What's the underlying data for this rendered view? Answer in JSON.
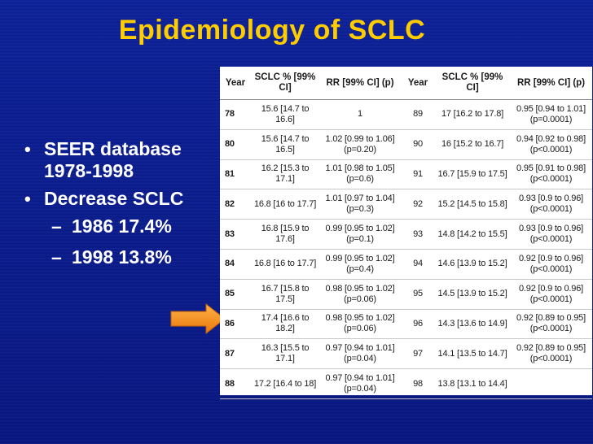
{
  "slide": {
    "title": "Epidemiology of SCLC",
    "bullets": [
      {
        "text": "SEER database 1978-1998"
      },
      {
        "text": "Decrease SCLC"
      }
    ],
    "sub_bullets": [
      {
        "text": "1986 17.4%"
      },
      {
        "text": "1998 13.8%"
      }
    ],
    "arrow_icon": "right-arrow-icon",
    "colors": {
      "background": "#0b1a8c",
      "title": "#ffcc00",
      "text": "#ffffff",
      "arrow": "#f7941d"
    }
  },
  "table": {
    "headers": [
      "Year",
      "SCLC % [99% CI]",
      "RR [99% CI] (p)",
      "Year",
      "SCLC % [99% CI]",
      "RR [99% CI] (p)"
    ],
    "rows": [
      [
        "78",
        "15.6 [14.7 to 16.6]",
        "1",
        "89",
        "17 [16.2 to 17.8]",
        "0.95 [0.94 to 1.01] (p=0.0001)"
      ],
      [
        "80",
        "15.6 [14.7 to 16.5]",
        "1.02 [0.99 to 1.06] (p=0.20)",
        "90",
        "16 [15.2 to 16.7]",
        "0.94 [0.92 to 0.98] (p<0.0001)"
      ],
      [
        "81",
        "16.2 [15.3 to 17.1]",
        "1.01 [0.98 to 1.05] (p=0.6)",
        "91",
        "16.7 [15.9 to 17.5]",
        "0.95 [0.91 to 0.98] (p<0.0001)"
      ],
      [
        "82",
        "16.8 [16 to 17.7]",
        "1.01 [0.97 to 1.04] (p=0.3)",
        "92",
        "15.2 [14.5 to 15.8]",
        "0.93 [0.9 to 0.96] (p<0.0001)"
      ],
      [
        "83",
        "16.8 [15.9 to 17.6]",
        "0.99 [0.95 to 1.02] (p=0.1)",
        "93",
        "14.8 [14.2 to 15.5]",
        "0.93 [0.9 to 0.96] (p<0.0001)"
      ],
      [
        "84",
        "16.8 [16 to 17.7]",
        "0.99 [0.95 to 1.02] (p=0.4)",
        "94",
        "14.6 [13.9 to 15.2]",
        "0.92 [0.9 to 0.96] (p<0.0001)"
      ],
      [
        "85",
        "16.7 [15.8 to 17.5]",
        "0.98 [0.95 to 1.02] (p=0.06)",
        "95",
        "14.5 [13.9 to 15.2]",
        "0.92 [0.9 to 0.96] (p<0.0001)"
      ],
      [
        "86",
        "17.4 [16.6 to 18.2]",
        "0.98 [0.95 to 1.02] (p=0.06)",
        "96",
        "14.3 [13.6 to 14.9]",
        "0.92 [0.89 to 0.95] (p<0.0001)"
      ],
      [
        "87",
        "16.3 [15.5 to 17.1]",
        "0.97 [0.94 to 1.01] (p=0.04)",
        "97",
        "14.1 [13.5 to 14.7]",
        "0.92 [0.89 to 0.95] (p<0.0001)"
      ],
      [
        "88",
        "17.2 [16.4 to 18]",
        "0.97 [0.94 to 1.01] (p=0.04)",
        "98",
        "13.8 [13.1 to 14.4]",
        ""
      ]
    ]
  }
}
